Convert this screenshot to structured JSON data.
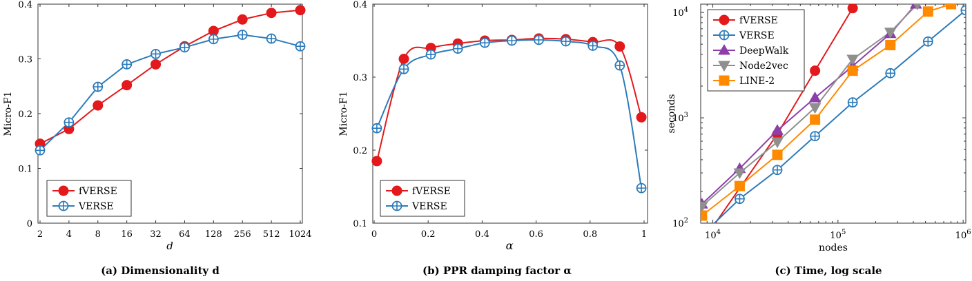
{
  "colors": {
    "fverse": "#e3191c",
    "verse": "#2b7bba",
    "deepwalk": "#8c3fa8",
    "node2vec": "#8f8f8f",
    "line2": "#ff8a00"
  },
  "chart_data": [
    {
      "type": "line",
      "caption": "(a) Dimensionality d",
      "xlabel": "d",
      "ylabel": "Micro-F1",
      "categories": [
        "2",
        "4",
        "8",
        "16",
        "32",
        "64",
        "128",
        "256",
        "512",
        "1024"
      ],
      "ylim": [
        0,
        0.4
      ],
      "yticks": [
        "0",
        "0.1",
        "0.2",
        "0.3",
        "0.4"
      ],
      "legend": "bottom-left",
      "series": [
        {
          "name": "fVERSE",
          "marker": "circle",
          "values": [
            0.145,
            0.172,
            0.215,
            0.252,
            0.29,
            0.323,
            0.351,
            0.372,
            0.384,
            0.389
          ]
        },
        {
          "name": "VERSE",
          "marker": "oplus",
          "values": [
            0.133,
            0.184,
            0.249,
            0.29,
            0.309,
            0.321,
            0.336,
            0.344,
            0.337,
            0.323
          ]
        }
      ]
    },
    {
      "type": "line",
      "caption": "(b) PPR damping factor α",
      "xlabel": "α",
      "ylabel": "Micro-F1",
      "xlim": [
        0,
        1
      ],
      "xticks": [
        "0",
        "0.2",
        "0.4",
        "0.6",
        "0.8",
        "1"
      ],
      "ylim": [
        0.1,
        0.4
      ],
      "yticks": [
        "0.1",
        "0.2",
        "0.3",
        "0.4"
      ],
      "legend": "bottom-left",
      "series": [
        {
          "name": "fVERSE",
          "marker": "circle",
          "x": [
            0.01,
            0.11,
            0.21,
            0.31,
            0.41,
            0.51,
            0.61,
            0.71,
            0.81,
            0.91,
            0.99
          ],
          "values": [
            0.185,
            0.325,
            0.34,
            0.346,
            0.35,
            0.351,
            0.353,
            0.352,
            0.348,
            0.342,
            0.245
          ]
        },
        {
          "name": "VERSE",
          "marker": "oplus",
          "x": [
            0.01,
            0.11,
            0.21,
            0.31,
            0.41,
            0.51,
            0.61,
            0.71,
            0.81,
            0.91,
            0.99
          ],
          "values": [
            0.23,
            0.311,
            0.331,
            0.339,
            0.347,
            0.35,
            0.351,
            0.349,
            0.343,
            0.316,
            0.148
          ]
        }
      ]
    },
    {
      "type": "line",
      "caption": "(c) Time, log scale",
      "xlabel": "nodes",
      "ylabel": "seconds",
      "xscale": "log",
      "yscale": "log",
      "xlim": [
        8000,
        1050000
      ],
      "ylim": [
        100,
        12000
      ],
      "xticks": [
        "10^4",
        "10^5",
        "10^6"
      ],
      "yticks": [
        "10^2",
        "10^3",
        "10^4"
      ],
      "legend": "top-left",
      "series": [
        {
          "name": "fVERSE",
          "marker": "circle",
          "x": [
            8000,
            32768,
            65536,
            131072
          ],
          "values": [
            63,
            700,
            2800,
            11000
          ]
        },
        {
          "name": "VERSE",
          "marker": "oplus",
          "x": [
            8000,
            16384,
            32768,
            65536,
            131072,
            262144,
            524288,
            1048576
          ],
          "values": [
            75,
            170,
            320,
            670,
            1400,
            2650,
            5300,
            10500
          ]
        },
        {
          "name": "DeepWalk",
          "marker": "triangle-up",
          "x": [
            8192,
            16384,
            32768,
            65536,
            131072,
            262144,
            420000
          ],
          "values": [
            152,
            330,
            760,
            1550,
            3100,
            6300,
            12000
          ]
        },
        {
          "name": "Node2vec",
          "marker": "triangle-down",
          "x": [
            8192,
            16384,
            32768,
            65536,
            131072,
            262144,
            430000
          ],
          "values": [
            145,
            300,
            590,
            1250,
            3600,
            6500,
            12000
          ]
        },
        {
          "name": "LINE-2",
          "marker": "square",
          "x": [
            8192,
            16384,
            32768,
            65536,
            131072,
            262144,
            524288,
            800000
          ],
          "values": [
            118,
            225,
            445,
            960,
            2800,
            4900,
            10200,
            12000
          ]
        }
      ]
    }
  ]
}
